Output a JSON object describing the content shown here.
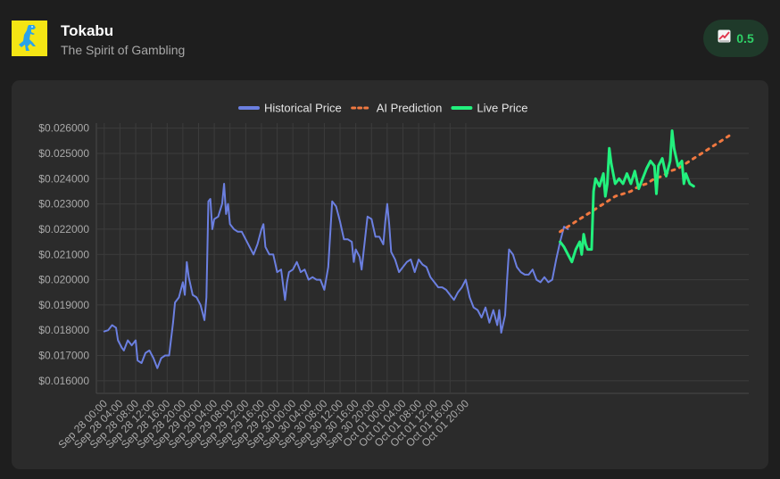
{
  "header": {
    "title": "Tokabu",
    "subtitle": "The Spirit of Gambling",
    "badge_icon": "chart-up-icon",
    "badge_value": "0.5"
  },
  "chart_data": {
    "type": "line",
    "title": "",
    "xlabel": "",
    "ylabel": "",
    "ylim": [
      0.0155,
      0.0262
    ],
    "y_ticks": [
      {
        "value": 0.016,
        "label": "$0.016000"
      },
      {
        "value": 0.017,
        "label": "$0.017000"
      },
      {
        "value": 0.018,
        "label": "$0.018000"
      },
      {
        "value": 0.019,
        "label": "$0.019000"
      },
      {
        "value": 0.02,
        "label": "$0.020000"
      },
      {
        "value": 0.021,
        "label": "$0.021000"
      },
      {
        "value": 0.022,
        "label": "$0.022000"
      },
      {
        "value": 0.023,
        "label": "$0.023000"
      },
      {
        "value": 0.024,
        "label": "$0.024000"
      },
      {
        "value": 0.025,
        "label": "$0.025000"
      },
      {
        "value": 0.026,
        "label": "$0.026000"
      }
    ],
    "x_ticks": [
      "Sep 28 00:00",
      "Sep 28 04:00",
      "Sep 28 08:00",
      "Sep 28 12:00",
      "Sep 28 16:00",
      "Sep 28 20:00",
      "Sep 29 00:00",
      "Sep 29 04:00",
      "Sep 29 08:00",
      "Sep 29 12:00",
      "Sep 29 16:00",
      "Sep 29 20:00",
      "Sep 30 00:00",
      "Sep 30 04:00",
      "Sep 30 08:00",
      "Sep 30 12:00",
      "Sep 30 16:00",
      "Sep 30 20:00",
      "Oct 01 00:00",
      "Oct 01 04:00",
      "Oct 01 08:00",
      "Oct 01 12:00",
      "Oct 01 16:00",
      "Oct 01 20:00"
    ],
    "x_unit": "hours after Sep 28 00:00",
    "grid": true,
    "legend_position": "top-center",
    "series": [
      {
        "name": "Historical Price",
        "color": "#6b7fe0",
        "style": "solid",
        "points": [
          [
            0,
            0.01795
          ],
          [
            1,
            0.018
          ],
          [
            2,
            0.0182
          ],
          [
            3,
            0.0181
          ],
          [
            3.5,
            0.0176
          ],
          [
            4.5,
            0.0173
          ],
          [
            5,
            0.0172
          ],
          [
            6,
            0.0176
          ],
          [
            7,
            0.0174
          ],
          [
            8,
            0.0176
          ],
          [
            8.5,
            0.0168
          ],
          [
            9.5,
            0.0167
          ],
          [
            10.5,
            0.0171
          ],
          [
            11.5,
            0.0172
          ],
          [
            12.5,
            0.0169
          ],
          [
            13.5,
            0.0165
          ],
          [
            14.5,
            0.0169
          ],
          [
            15.5,
            0.017
          ],
          [
            16.5,
            0.017
          ],
          [
            17.5,
            0.0183
          ],
          [
            18,
            0.0191
          ],
          [
            19,
            0.0193
          ],
          [
            20,
            0.0199
          ],
          [
            20.5,
            0.0194
          ],
          [
            21,
            0.0207
          ],
          [
            21.5,
            0.0201
          ],
          [
            22.5,
            0.0194
          ],
          [
            23.5,
            0.0193
          ],
          [
            24.5,
            0.019
          ],
          [
            25.5,
            0.0184
          ],
          [
            26,
            0.0193
          ],
          [
            26.5,
            0.0231
          ],
          [
            27,
            0.0232
          ],
          [
            27.5,
            0.022
          ],
          [
            28,
            0.0224
          ],
          [
            29,
            0.0225
          ],
          [
            30,
            0.023
          ],
          [
            30.5,
            0.0238
          ],
          [
            31,
            0.0226
          ],
          [
            31.5,
            0.023
          ],
          [
            32,
            0.0222
          ],
          [
            33,
            0.022
          ],
          [
            34,
            0.0219
          ],
          [
            35,
            0.0219
          ],
          [
            36,
            0.0216
          ],
          [
            37,
            0.0213
          ],
          [
            38,
            0.021
          ],
          [
            39,
            0.0214
          ],
          [
            40,
            0.022
          ],
          [
            40.5,
            0.0222
          ],
          [
            41,
            0.0213
          ],
          [
            42,
            0.021
          ],
          [
            43,
            0.021
          ],
          [
            44,
            0.0203
          ],
          [
            45,
            0.0204
          ],
          [
            46,
            0.0192
          ],
          [
            46.5,
            0.0199
          ],
          [
            47,
            0.0203
          ],
          [
            48,
            0.0204
          ],
          [
            49,
            0.0207
          ],
          [
            50,
            0.0203
          ],
          [
            51,
            0.0204
          ],
          [
            52,
            0.02
          ],
          [
            53,
            0.0201
          ],
          [
            54,
            0.02
          ],
          [
            55,
            0.02
          ],
          [
            56,
            0.0196
          ],
          [
            57,
            0.0205
          ],
          [
            58,
            0.0231
          ],
          [
            59,
            0.0229
          ],
          [
            60,
            0.0223
          ],
          [
            61,
            0.0216
          ],
          [
            62,
            0.0216
          ],
          [
            63,
            0.0215
          ],
          [
            63.5,
            0.0207
          ],
          [
            64,
            0.0212
          ],
          [
            65,
            0.0209
          ],
          [
            65.5,
            0.0204
          ],
          [
            66,
            0.0211
          ],
          [
            67,
            0.0225
          ],
          [
            68,
            0.0224
          ],
          [
            69,
            0.0217
          ],
          [
            70,
            0.0217
          ],
          [
            71,
            0.0214
          ],
          [
            71.5,
            0.0223
          ],
          [
            72,
            0.023
          ],
          [
            72.5,
            0.0222
          ],
          [
            73,
            0.0211
          ],
          [
            74,
            0.0208
          ],
          [
            75,
            0.0203
          ],
          [
            76,
            0.0205
          ],
          [
            77,
            0.0207
          ],
          [
            78,
            0.0208
          ],
          [
            79,
            0.0203
          ],
          [
            80,
            0.0208
          ],
          [
            81,
            0.0206
          ],
          [
            82,
            0.0205
          ],
          [
            83,
            0.0201
          ],
          [
            84,
            0.0199
          ],
          [
            85,
            0.0197
          ],
          [
            86,
            0.0197
          ],
          [
            87,
            0.0196
          ],
          [
            88,
            0.0194
          ],
          [
            89,
            0.0192
          ],
          [
            90,
            0.0195
          ],
          [
            91,
            0.0197
          ],
          [
            92,
            0.02
          ],
          [
            93,
            0.0193
          ],
          [
            94,
            0.0189
          ],
          [
            95,
            0.0188
          ],
          [
            96,
            0.0185
          ],
          [
            97,
            0.0189
          ],
          [
            98,
            0.0183
          ],
          [
            99,
            0.0188
          ],
          [
            100,
            0.0182
          ],
          [
            100.5,
            0.0188
          ],
          [
            101,
            0.0179
          ],
          [
            102,
            0.0186
          ],
          [
            102.5,
            0.02
          ],
          [
            103,
            0.0212
          ],
          [
            104,
            0.021
          ],
          [
            105,
            0.0205
          ],
          [
            106,
            0.0203
          ],
          [
            107,
            0.0202
          ],
          [
            108,
            0.0202
          ],
          [
            109,
            0.0204
          ],
          [
            110,
            0.02
          ],
          [
            111,
            0.0199
          ],
          [
            112,
            0.0201
          ],
          [
            113,
            0.0199
          ],
          [
            114,
            0.02
          ],
          [
            115,
            0.0208
          ],
          [
            116,
            0.0215
          ],
          [
            117,
            0.0221
          ],
          [
            118,
            0.022
          ]
        ]
      },
      {
        "name": "AI Prediction",
        "color": "#f07840",
        "style": "dashed",
        "points": [
          [
            116,
            0.0219
          ],
          [
            118,
            0.0221
          ],
          [
            120,
            0.0223
          ],
          [
            122,
            0.0225
          ],
          [
            124,
            0.0227
          ],
          [
            126,
            0.0229
          ],
          [
            128,
            0.0231
          ],
          [
            130,
            0.0233
          ],
          [
            132,
            0.0234
          ],
          [
            134,
            0.0235
          ],
          [
            136,
            0.0237
          ],
          [
            138,
            0.0238
          ],
          [
            140,
            0.024
          ],
          [
            142,
            0.0241
          ],
          [
            144,
            0.0243
          ],
          [
            146,
            0.0244
          ],
          [
            148,
            0.0246
          ],
          [
            150,
            0.0248
          ],
          [
            152,
            0.025
          ],
          [
            154,
            0.0252
          ],
          [
            156,
            0.0254
          ],
          [
            158,
            0.0256
          ],
          [
            160,
            0.0258
          ]
        ]
      },
      {
        "name": "Live Price",
        "color": "#22f07d",
        "style": "solid",
        "points": [
          [
            116,
            0.0215
          ],
          [
            117,
            0.0213
          ],
          [
            118,
            0.021
          ],
          [
            119,
            0.0207
          ],
          [
            120,
            0.0212
          ],
          [
            121,
            0.0215
          ],
          [
            121.5,
            0.021
          ],
          [
            122,
            0.0218
          ],
          [
            122.5,
            0.0214
          ],
          [
            123,
            0.0212
          ],
          [
            124,
            0.0212
          ],
          [
            124.5,
            0.0235
          ],
          [
            125,
            0.024
          ],
          [
            126,
            0.0237
          ],
          [
            127,
            0.0242
          ],
          [
            127.5,
            0.0233
          ],
          [
            128,
            0.0238
          ],
          [
            128.5,
            0.0252
          ],
          [
            129,
            0.0246
          ],
          [
            130,
            0.0238
          ],
          [
            131,
            0.024
          ],
          [
            132,
            0.0238
          ],
          [
            133,
            0.0242
          ],
          [
            134,
            0.0238
          ],
          [
            135,
            0.0243
          ],
          [
            136,
            0.0236
          ],
          [
            137,
            0.024
          ],
          [
            138,
            0.0244
          ],
          [
            139,
            0.0247
          ],
          [
            140,
            0.0245
          ],
          [
            140.5,
            0.0234
          ],
          [
            141,
            0.0245
          ],
          [
            142,
            0.0248
          ],
          [
            143,
            0.0241
          ],
          [
            144,
            0.0247
          ],
          [
            144.5,
            0.0259
          ],
          [
            145,
            0.0252
          ],
          [
            146,
            0.0245
          ],
          [
            147,
            0.0247
          ],
          [
            147.5,
            0.0238
          ],
          [
            148,
            0.0242
          ],
          [
            149,
            0.0238
          ],
          [
            150,
            0.0237
          ]
        ]
      }
    ]
  }
}
